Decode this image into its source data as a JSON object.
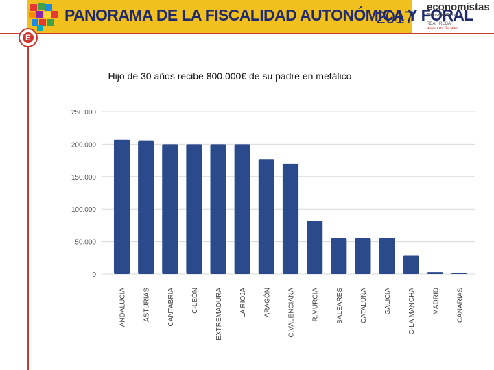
{
  "header": {
    "title": "PANORAMA DE LA FISCALIDAD AUTONÓMICA Y FORAL",
    "year": "2017",
    "brand": {
      "name": "economistas",
      "sub": "Consejo General",
      "org": "REAF·REGAF",
      "tag": "asesores fiscales"
    },
    "emblem_letter": "E",
    "colors": {
      "banner": "#f2c01e",
      "accent": "#c8392e",
      "bar": "#2a4a8c"
    }
  },
  "chart_data": {
    "type": "bar",
    "title": "Hijo de 30 años recibe 800.000€ de su padre en metálico",
    "categories": [
      "ANDALUCÍA",
      "ASTURIAS",
      "CANTABRIA",
      "C-LEÓN",
      "EXTREMADURA",
      "LA RIOJA",
      "ARAGÓN",
      "C.VALENCIANA",
      "R.MURCIA",
      "BALEARES",
      "CATALUÑA",
      "GALICIA",
      "C-LA MANCHA",
      "MADRID",
      "CANARIAS"
    ],
    "values": [
      207000,
      205000,
      200000,
      200000,
      200000,
      200000,
      177000,
      170000,
      82000,
      55000,
      55000,
      55000,
      29000,
      3000,
      800
    ],
    "ylim": [
      0,
      250000
    ],
    "yticks": [
      0,
      50000,
      100000,
      150000,
      200000,
      250000
    ],
    "ytick_labels": [
      "0",
      "50.000",
      "100.000",
      "150.000",
      "200.000",
      "250.000"
    ],
    "grid": true,
    "legend": "none",
    "xlabel": "",
    "ylabel": ""
  }
}
